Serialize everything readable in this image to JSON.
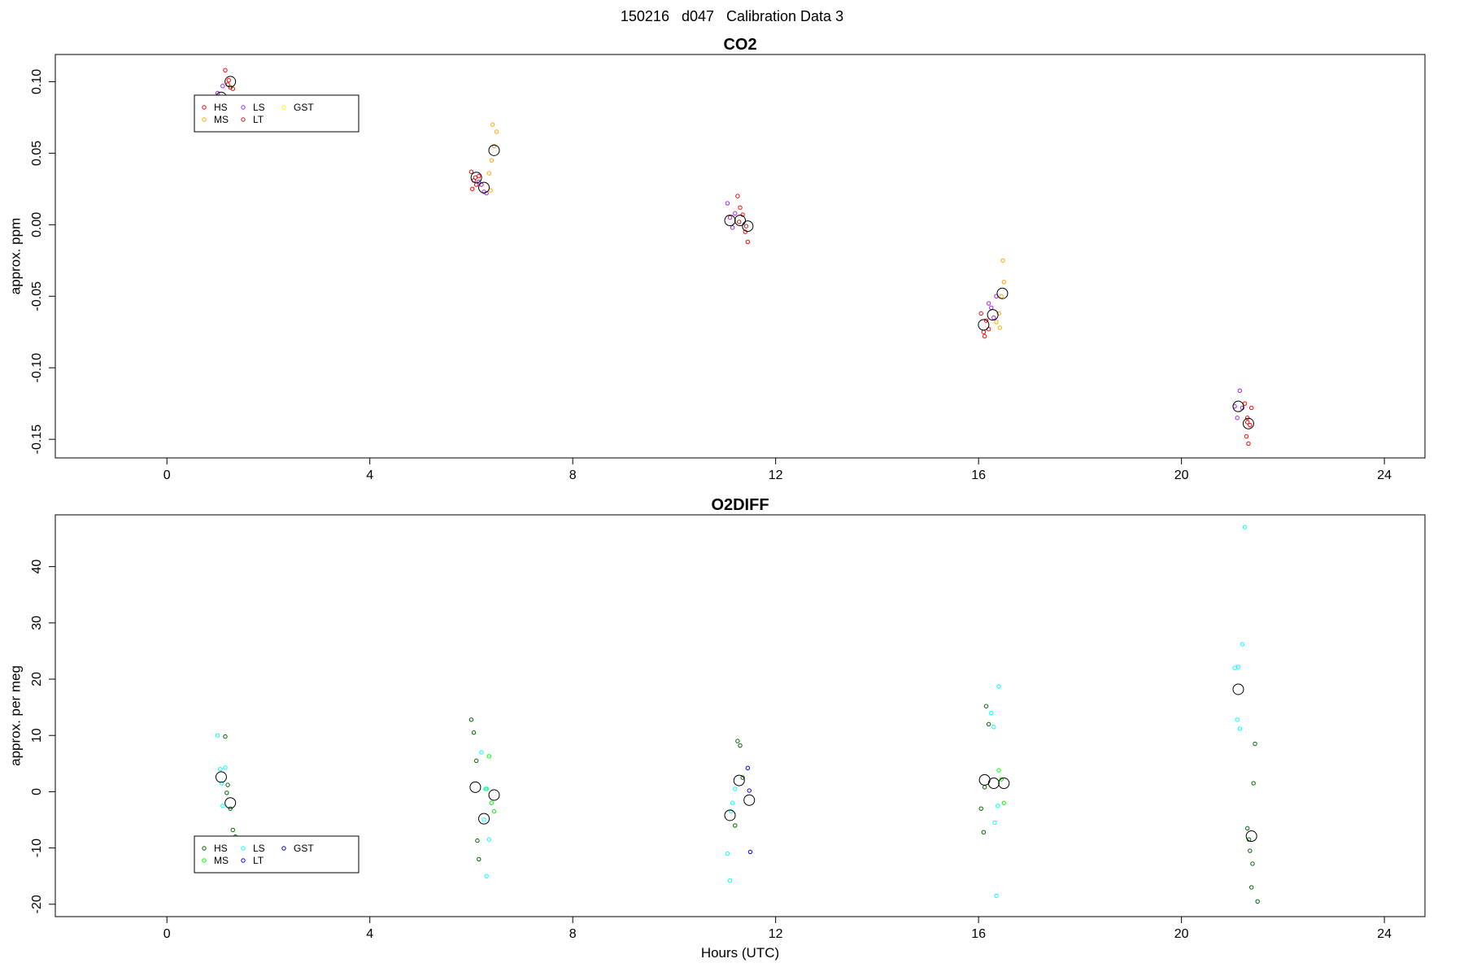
{
  "figure": {
    "title": "150216   d047   Calibration Data 3"
  },
  "chart_data": [
    {
      "type": "scatter",
      "title": "CO2",
      "xlabel": "",
      "ylabel": "approx. ppm",
      "xlim": [
        -2.2,
        24.8
      ],
      "ylim": [
        -0.163,
        0.119
      ],
      "xticks": [
        0,
        4,
        8,
        12,
        16,
        20,
        24
      ],
      "xtick_labels": [
        "0",
        "4",
        "8",
        "12",
        "16",
        "20",
        "24"
      ],
      "yticks": [
        -0.15,
        -0.1,
        -0.05,
        0.0,
        0.05,
        0.1
      ],
      "ytick_labels": [
        "-0.15",
        "-0.10",
        "-0.05",
        "0.00",
        "0.05",
        "0.10"
      ],
      "grid": false,
      "legend_position": "top-left",
      "legend": [
        {
          "label": "HS",
          "color": "#ff0000"
        },
        {
          "label": "MS",
          "color": "#ffa500"
        },
        {
          "label": "LS",
          "color": "#a020f0"
        },
        {
          "label": "LT",
          "color": "#b22222"
        },
        {
          "label": "GST",
          "color": "#ffff00"
        }
      ],
      "series": [
        {
          "name": "HS",
          "color": "#ff0000",
          "points": [
            [
              1.15,
              0.108
            ],
            [
              1.2,
              0.098
            ],
            [
              1.25,
              0.096
            ],
            [
              1.3,
              0.095
            ],
            [
              1.22,
              0.101
            ],
            [
              6.0,
              0.037
            ],
            [
              6.05,
              0.031
            ],
            [
              6.1,
              0.028
            ],
            [
              6.15,
              0.034
            ],
            [
              6.02,
              0.025
            ],
            [
              11.25,
              0.02
            ],
            [
              11.3,
              0.012
            ],
            [
              11.35,
              0.007
            ],
            [
              11.4,
              -0.005
            ],
            [
              11.45,
              -0.012
            ],
            [
              16.05,
              -0.062
            ],
            [
              16.1,
              -0.075
            ],
            [
              16.15,
              -0.067
            ],
            [
              16.2,
              -0.073
            ],
            [
              16.12,
              -0.078
            ],
            [
              21.25,
              -0.125
            ],
            [
              21.3,
              -0.135
            ],
            [
              21.35,
              -0.14
            ],
            [
              21.28,
              -0.148
            ],
            [
              21.32,
              -0.153
            ],
            [
              21.38,
              -0.128
            ]
          ]
        },
        {
          "name": "MS",
          "color": "#ffa500",
          "points": [
            [
              6.35,
              0.036
            ],
            [
              6.4,
              0.045
            ],
            [
              6.45,
              0.055
            ],
            [
              6.5,
              0.065
            ],
            [
              6.42,
              0.07
            ],
            [
              6.38,
              0.024
            ],
            [
              16.35,
              -0.068
            ],
            [
              16.4,
              -0.062
            ],
            [
              16.45,
              -0.05
            ],
            [
              16.5,
              -0.04
            ],
            [
              16.48,
              -0.025
            ],
            [
              16.42,
              -0.072
            ]
          ]
        },
        {
          "name": "LS",
          "color": "#a020f0",
          "points": [
            [
              1.0,
              0.092
            ],
            [
              1.05,
              0.085
            ],
            [
              1.1,
              0.097
            ],
            [
              1.15,
              0.083
            ],
            [
              6.2,
              0.028
            ],
            [
              6.25,
              0.023
            ],
            [
              6.3,
              0.022
            ],
            [
              6.15,
              0.03
            ],
            [
              11.05,
              0.015
            ],
            [
              11.1,
              0.005
            ],
            [
              11.15,
              -0.002
            ],
            [
              11.2,
              0.008
            ],
            [
              16.2,
              -0.055
            ],
            [
              16.25,
              -0.058
            ],
            [
              16.3,
              -0.065
            ],
            [
              16.35,
              -0.05
            ],
            [
              21.05,
              -0.127
            ],
            [
              21.1,
              -0.135
            ],
            [
              21.15,
              -0.116
            ],
            [
              21.2,
              -0.128
            ]
          ]
        },
        {
          "name": "LT",
          "color": "#b22222",
          "points": [
            [
              6.08,
              0.033
            ],
            [
              11.28,
              0.002
            ],
            [
              11.42,
              -0.001
            ],
            [
              21.3,
              -0.138
            ]
          ]
        }
      ],
      "means": [
        [
          1.07,
          0.089
        ],
        [
          1.25,
          0.1
        ],
        [
          6.1,
          0.033
        ],
        [
          6.25,
          0.026
        ],
        [
          6.45,
          0.052
        ],
        [
          11.1,
          0.003
        ],
        [
          11.3,
          0.003
        ],
        [
          11.45,
          -0.001
        ],
        [
          16.1,
          -0.07
        ],
        [
          16.28,
          -0.063
        ],
        [
          16.47,
          -0.048
        ],
        [
          21.12,
          -0.127
        ],
        [
          21.32,
          -0.139
        ]
      ]
    },
    {
      "type": "scatter",
      "title": "O2DIFF",
      "xlabel": "Hours (UTC)",
      "ylabel": "approx. per meg",
      "xlim": [
        -2.2,
        24.8
      ],
      "ylim": [
        -22.2,
        49.2
      ],
      "xticks": [
        0,
        4,
        8,
        12,
        16,
        20,
        24
      ],
      "xtick_labels": [
        "0",
        "4",
        "8",
        "12",
        "16",
        "20",
        "24"
      ],
      "yticks": [
        -20,
        -10,
        0,
        10,
        20,
        30,
        40
      ],
      "ytick_labels": [
        "-20",
        "-10",
        "0",
        "10",
        "20",
        "30",
        "40"
      ],
      "grid": false,
      "legend_position": "bottom-left",
      "legend": [
        {
          "label": "HS",
          "color": "#006400"
        },
        {
          "label": "MS",
          "color": "#00ff00"
        },
        {
          "label": "LS",
          "color": "#00ffff"
        },
        {
          "label": "LT",
          "color": "#0000ff"
        },
        {
          "label": "GST",
          "color": "#00008b"
        }
      ],
      "series": [
        {
          "name": "HS",
          "color": "#006400",
          "points": [
            [
              1.15,
              9.8
            ],
            [
              1.2,
              1.2
            ],
            [
              1.25,
              -3.0
            ],
            [
              1.3,
              -6.8
            ],
            [
              1.35,
              -8.0
            ],
            [
              1.18,
              -0.2
            ],
            [
              6.0,
              12.8
            ],
            [
              6.05,
              10.5
            ],
            [
              6.1,
              5.5
            ],
            [
              6.12,
              -8.7
            ],
            [
              6.15,
              -12.0
            ],
            [
              11.25,
              9.0
            ],
            [
              11.3,
              8.2
            ],
            [
              11.2,
              -6.0
            ],
            [
              11.35,
              2.5
            ],
            [
              16.05,
              -3.0
            ],
            [
              16.1,
              -7.2
            ],
            [
              16.15,
              15.2
            ],
            [
              16.2,
              12.0
            ],
            [
              16.12,
              0.8
            ],
            [
              21.3,
              -6.5
            ],
            [
              21.35,
              -10.5
            ],
            [
              21.4,
              -12.8
            ],
            [
              21.38,
              -17.0
            ],
            [
              21.45,
              8.5
            ],
            [
              21.42,
              1.5
            ],
            [
              21.5,
              -19.5
            ],
            [
              21.33,
              -8.5
            ]
          ]
        },
        {
          "name": "MS",
          "color": "#00ff00",
          "points": [
            [
              6.35,
              6.3
            ],
            [
              6.4,
              -2.0
            ],
            [
              6.45,
              -3.5
            ],
            [
              6.3,
              0.5
            ],
            [
              16.4,
              3.8
            ],
            [
              16.45,
              2.2
            ],
            [
              16.5,
              -2.0
            ]
          ]
        },
        {
          "name": "LS",
          "color": "#00ffff",
          "points": [
            [
              1.0,
              10.0
            ],
            [
              1.05,
              4.0
            ],
            [
              1.1,
              -2.5
            ],
            [
              1.15,
              4.3
            ],
            [
              1.08,
              1.5
            ],
            [
              6.2,
              7.0
            ],
            [
              6.25,
              -5.0
            ],
            [
              6.3,
              -15.0
            ],
            [
              6.35,
              -8.5
            ],
            [
              6.28,
              0.5
            ],
            [
              11.05,
              -11.0
            ],
            [
              11.1,
              -15.8
            ],
            [
              11.15,
              -2.0
            ],
            [
              11.2,
              0.5
            ],
            [
              11.12,
              -3.5
            ],
            [
              16.25,
              14.0
            ],
            [
              16.3,
              11.5
            ],
            [
              16.35,
              -18.5
            ],
            [
              16.4,
              18.7
            ],
            [
              16.32,
              -5.5
            ],
            [
              16.38,
              -2.5
            ],
            [
              21.05,
              22.0
            ],
            [
              21.1,
              12.8
            ],
            [
              21.15,
              11.2
            ],
            [
              21.2,
              26.2
            ],
            [
              21.25,
              47.0
            ],
            [
              21.12,
              22.2
            ]
          ]
        },
        {
          "name": "LT",
          "color": "#0000ff",
          "points": [
            [
              11.45,
              4.2
            ],
            [
              11.5,
              -10.7
            ],
            [
              11.48,
              0.2
            ]
          ]
        }
      ],
      "means": [
        [
          1.07,
          2.6
        ],
        [
          1.25,
          -2.0
        ],
        [
          6.08,
          0.8
        ],
        [
          6.25,
          -4.8
        ],
        [
          6.45,
          -0.6
        ],
        [
          11.1,
          -4.2
        ],
        [
          11.28,
          2.0
        ],
        [
          11.48,
          -1.5
        ],
        [
          16.12,
          2.1
        ],
        [
          16.3,
          1.5
        ],
        [
          16.5,
          1.5
        ],
        [
          21.12,
          18.2
        ],
        [
          21.38,
          -7.9
        ]
      ]
    }
  ]
}
